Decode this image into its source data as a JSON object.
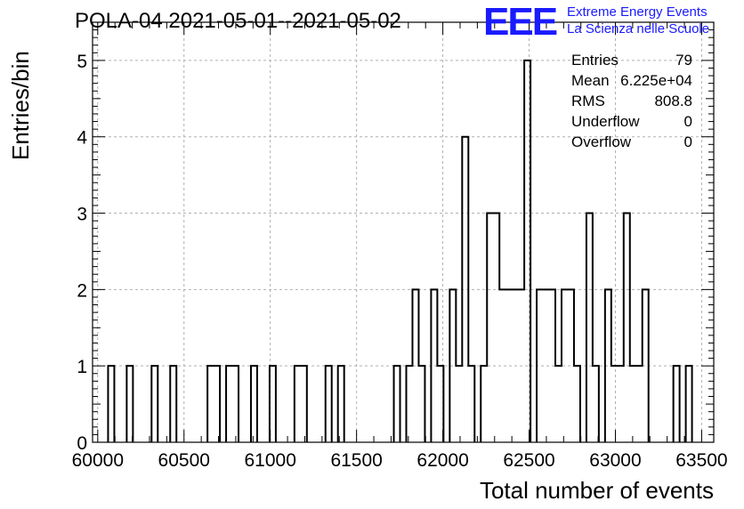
{
  "header": {
    "title": "POLA-04 2021-05-01--2021-05-02",
    "logo_text": "EEE",
    "logo_line1": "Extreme Energy Events",
    "logo_line2": "La Scienza nelle Scuole"
  },
  "stats": {
    "entries_label": "Entries",
    "entries_value": "79",
    "mean_label": "Mean",
    "mean_value": "6.225e+04",
    "rms_label": "RMS",
    "rms_value": "808.8",
    "underflow_label": "Underflow",
    "underflow_value": "0",
    "overflow_label": "Overflow",
    "overflow_value": "0"
  },
  "chart_data": {
    "type": "histogram",
    "xlabel": "Total number of events",
    "ylabel": "Entries/bin",
    "xlim": [
      59970,
      63570
    ],
    "ylim": [
      0,
      5.5
    ],
    "grid": true,
    "bin_width": 36,
    "x_ticks": [
      60000,
      60500,
      61000,
      61500,
      62000,
      62500,
      63000,
      63500
    ],
    "y_ticks": [
      0,
      1,
      2,
      3,
      4,
      5
    ],
    "bins": [
      {
        "x": 60078,
        "count": 1
      },
      {
        "x": 60186,
        "count": 1
      },
      {
        "x": 60330,
        "count": 1
      },
      {
        "x": 60438,
        "count": 1
      },
      {
        "x": 60654,
        "count": 1
      },
      {
        "x": 60690,
        "count": 1
      },
      {
        "x": 60762,
        "count": 1
      },
      {
        "x": 60798,
        "count": 1
      },
      {
        "x": 60906,
        "count": 1
      },
      {
        "x": 61014,
        "count": 1
      },
      {
        "x": 61158,
        "count": 1
      },
      {
        "x": 61194,
        "count": 1
      },
      {
        "x": 61338,
        "count": 1
      },
      {
        "x": 61410,
        "count": 1
      },
      {
        "x": 61734,
        "count": 1
      },
      {
        "x": 61806,
        "count": 1
      },
      {
        "x": 61842,
        "count": 2
      },
      {
        "x": 61878,
        "count": 1
      },
      {
        "x": 61950,
        "count": 2
      },
      {
        "x": 61986,
        "count": 1
      },
      {
        "x": 62058,
        "count": 2
      },
      {
        "x": 62094,
        "count": 1
      },
      {
        "x": 62130,
        "count": 4
      },
      {
        "x": 62166,
        "count": 1
      },
      {
        "x": 62238,
        "count": 1
      },
      {
        "x": 62274,
        "count": 3
      },
      {
        "x": 62310,
        "count": 3
      },
      {
        "x": 62346,
        "count": 2
      },
      {
        "x": 62382,
        "count": 2
      },
      {
        "x": 62418,
        "count": 2
      },
      {
        "x": 62454,
        "count": 2
      },
      {
        "x": 62490,
        "count": 5
      },
      {
        "x": 62562,
        "count": 2
      },
      {
        "x": 62598,
        "count": 2
      },
      {
        "x": 62634,
        "count": 2
      },
      {
        "x": 62670,
        "count": 1
      },
      {
        "x": 62706,
        "count": 2
      },
      {
        "x": 62742,
        "count": 2
      },
      {
        "x": 62778,
        "count": 1
      },
      {
        "x": 62850,
        "count": 3
      },
      {
        "x": 62886,
        "count": 1
      },
      {
        "x": 62958,
        "count": 2
      },
      {
        "x": 62994,
        "count": 1
      },
      {
        "x": 63030,
        "count": 1
      },
      {
        "x": 63066,
        "count": 3
      },
      {
        "x": 63102,
        "count": 1
      },
      {
        "x": 63138,
        "count": 1
      },
      {
        "x": 63174,
        "count": 2
      },
      {
        "x": 63354,
        "count": 1
      },
      {
        "x": 63426,
        "count": 1
      }
    ]
  }
}
